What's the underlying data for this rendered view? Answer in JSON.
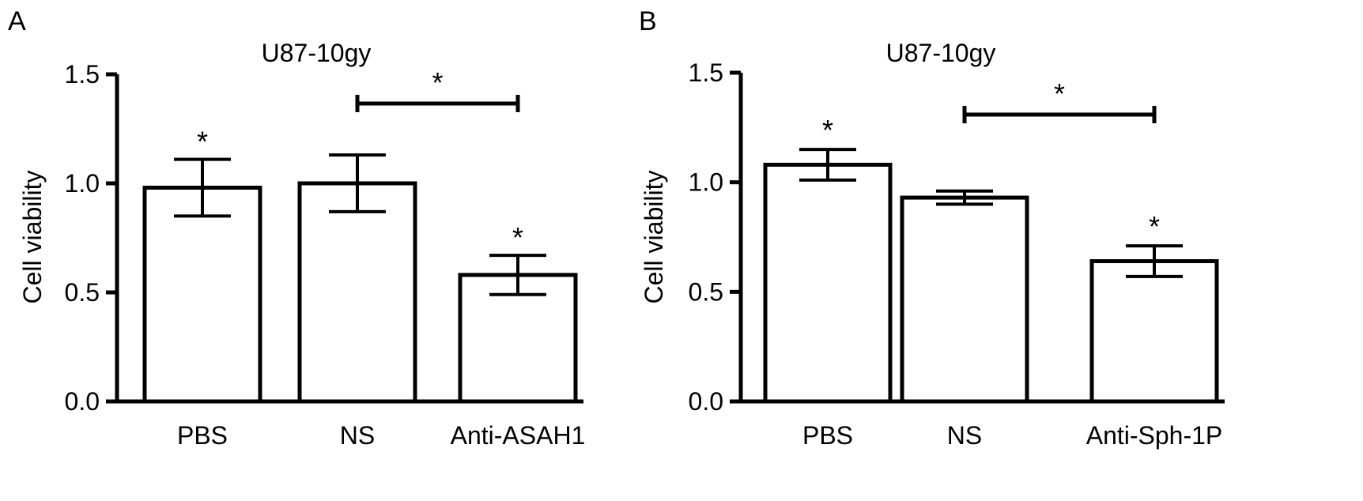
{
  "chart_data": [
    {
      "panel_label": "A",
      "type": "bar",
      "title": "U87-10gy",
      "ylabel": "Cell viability",
      "xlabel": "",
      "ylim": [
        0,
        1.5
      ],
      "yticks": [
        "0.0",
        "0.5",
        "1.0",
        "1.5"
      ],
      "categories": [
        "PBS",
        "NS",
        "Anti-ASAH1"
      ],
      "values": [
        0.98,
        1.0,
        0.58
      ],
      "errors": [
        0.13,
        0.13,
        0.09
      ],
      "bar_stars": [
        "*",
        "",
        "*"
      ],
      "bracket": {
        "from": "NS",
        "to": "Anti-ASAH1",
        "label": "*"
      }
    },
    {
      "panel_label": "B",
      "type": "bar",
      "title": "U87-10gy",
      "ylabel": "Cell viability",
      "xlabel": "",
      "ylim": [
        0,
        1.5
      ],
      "yticks": [
        "0.0",
        "0.5",
        "1.0",
        "1.5"
      ],
      "categories": [
        "PBS",
        "NS",
        "Anti-Sph-1P"
      ],
      "values": [
        1.08,
        0.93,
        0.64
      ],
      "errors": [
        0.07,
        0.03,
        0.07
      ],
      "bar_stars": [
        "*",
        "",
        "*"
      ],
      "bracket": {
        "from": "NS",
        "to": "Anti-Sph-1P",
        "label": "*"
      }
    }
  ]
}
